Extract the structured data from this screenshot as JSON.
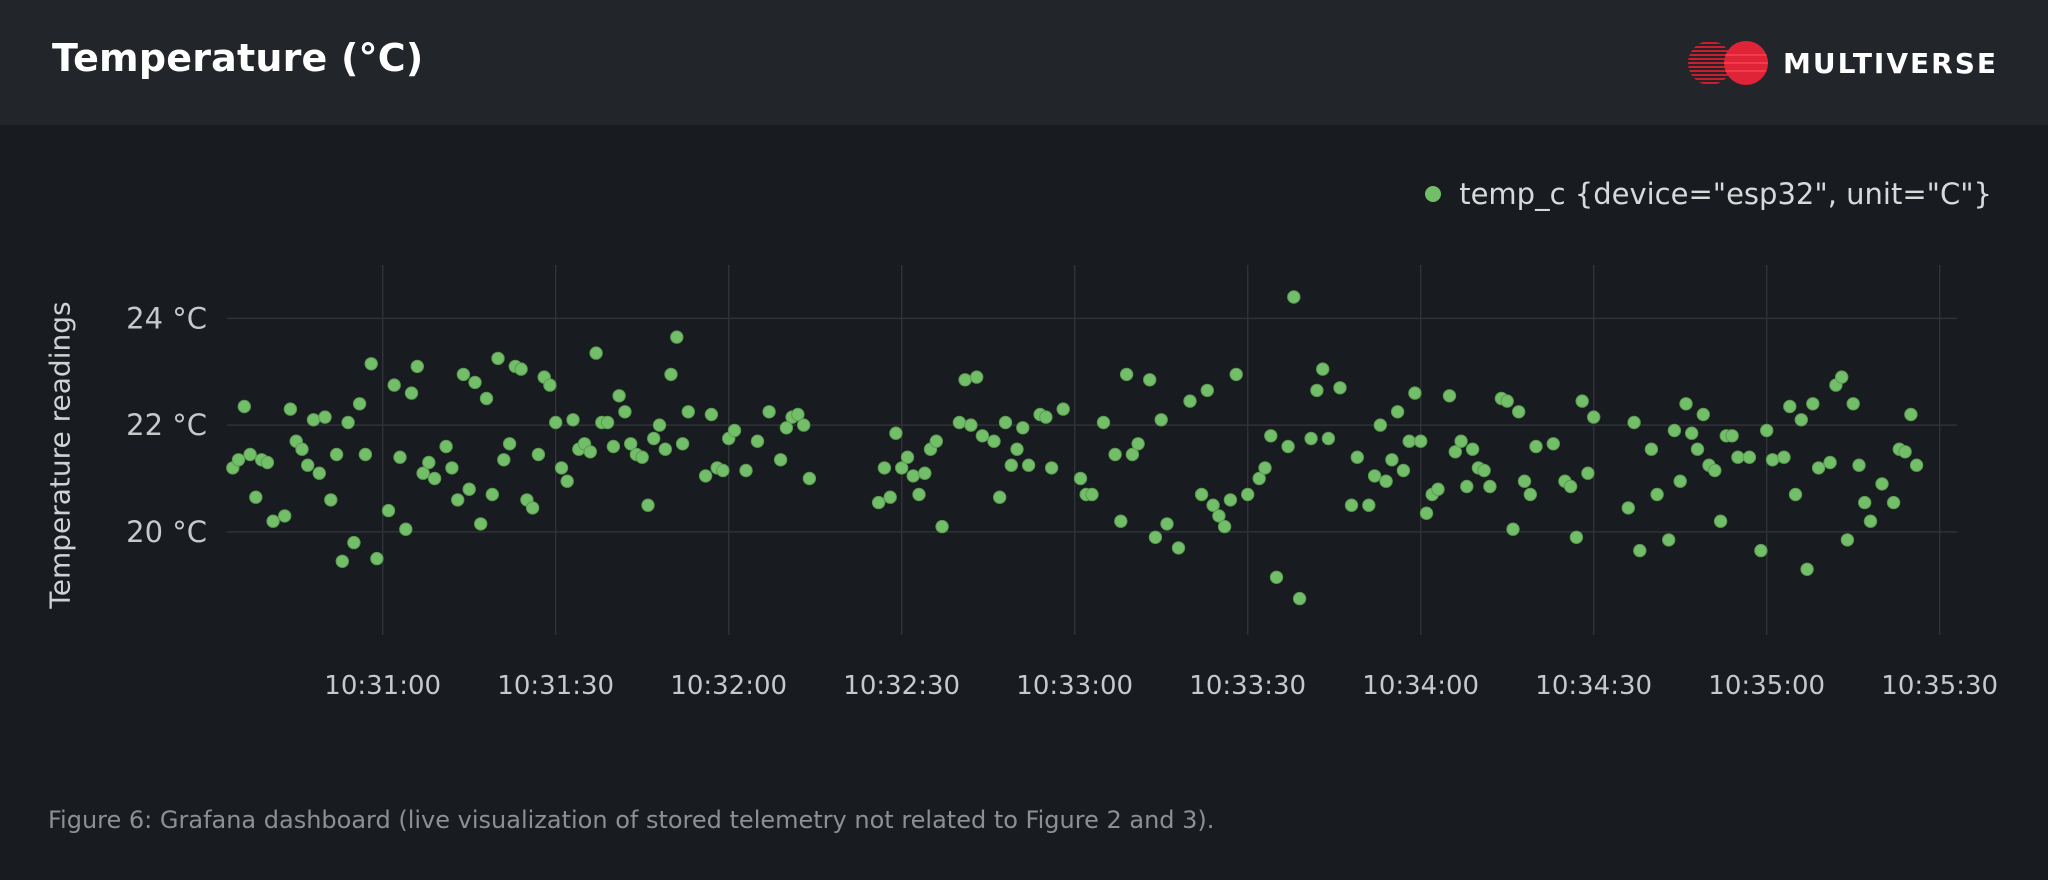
{
  "header": {
    "title": "Temperature (°C)",
    "logo_text": "MULTIVERSE"
  },
  "colors": {
    "background": "#181b1f",
    "header_background": "#22252a",
    "series": "#73bf69",
    "grid": "#2f3237",
    "logo_red": "#e02437"
  },
  "caption": "Figure 6: Grafana dashboard (live visualization of stored telemetry not related to Figure 2 and 3).",
  "chart_data": {
    "type": "scatter",
    "title": "Temperature (°C)",
    "ylabel": "Temperature readings",
    "xlabel": "",
    "x_tick_labels": [
      "10:31:00",
      "10:31:30",
      "10:32:00",
      "10:32:30",
      "10:33:00",
      "10:33:30",
      "10:34:00",
      "10:34:30",
      "10:35:00",
      "10:35:30"
    ],
    "y_tick_labels": [
      "20 °C",
      "22 °C",
      "24 °C"
    ],
    "y_ticks": [
      20,
      22,
      24
    ],
    "xlim": [
      "10:30:33",
      "10:35:33"
    ],
    "ylim": [
      18.2,
      25.0
    ],
    "grid": true,
    "legend_position": "top-right",
    "series": [
      {
        "name": "temp_c {device=\"esp32\", unit=\"C\"}",
        "points": [
          [
            "10:30:34",
            21.2
          ],
          [
            "10:30:35",
            21.35
          ],
          [
            "10:30:36",
            22.35
          ],
          [
            "10:30:37",
            21.45
          ],
          [
            "10:30:38",
            20.65
          ],
          [
            "10:30:39",
            21.35
          ],
          [
            "10:30:40",
            21.3
          ],
          [
            "10:30:41",
            20.2
          ],
          [
            "10:30:43",
            20.3
          ],
          [
            "10:30:44",
            22.3
          ],
          [
            "10:30:45",
            21.7
          ],
          [
            "10:30:46",
            21.55
          ],
          [
            "10:30:47",
            21.25
          ],
          [
            "10:30:48",
            22.1
          ],
          [
            "10:30:49",
            21.1
          ],
          [
            "10:30:50",
            22.15
          ],
          [
            "10:30:51",
            20.6
          ],
          [
            "10:30:52",
            21.45
          ],
          [
            "10:30:53",
            19.45
          ],
          [
            "10:30:54",
            22.05
          ],
          [
            "10:30:55",
            19.8
          ],
          [
            "10:30:56",
            22.4
          ],
          [
            "10:30:57",
            21.45
          ],
          [
            "10:30:58",
            23.15
          ],
          [
            "10:30:59",
            19.5
          ],
          [
            "10:31:01",
            20.4
          ],
          [
            "10:31:02",
            22.75
          ],
          [
            "10:31:03",
            21.4
          ],
          [
            "10:31:04",
            20.05
          ],
          [
            "10:31:05",
            22.6
          ],
          [
            "10:31:06",
            23.1
          ],
          [
            "10:31:07",
            21.1
          ],
          [
            "10:31:08",
            21.3
          ],
          [
            "10:31:09",
            21.0
          ],
          [
            "10:31:11",
            21.6
          ],
          [
            "10:31:12",
            21.2
          ],
          [
            "10:31:13",
            20.6
          ],
          [
            "10:31:14",
            22.95
          ],
          [
            "10:31:15",
            20.8
          ],
          [
            "10:31:16",
            22.8
          ],
          [
            "10:31:17",
            20.15
          ],
          [
            "10:31:18",
            22.5
          ],
          [
            "10:31:19",
            20.7
          ],
          [
            "10:31:20",
            23.25
          ],
          [
            "10:31:21",
            21.35
          ],
          [
            "10:31:22",
            21.65
          ],
          [
            "10:31:23",
            23.1
          ],
          [
            "10:31:24",
            23.05
          ],
          [
            "10:31:25",
            20.6
          ],
          [
            "10:31:26",
            20.45
          ],
          [
            "10:31:27",
            21.45
          ],
          [
            "10:31:28",
            22.9
          ],
          [
            "10:31:29",
            22.75
          ],
          [
            "10:31:30",
            22.05
          ],
          [
            "10:31:31",
            21.2
          ],
          [
            "10:31:32",
            20.95
          ],
          [
            "10:31:33",
            22.1
          ],
          [
            "10:31:34",
            21.55
          ],
          [
            "10:31:35",
            21.65
          ],
          [
            "10:31:36",
            21.5
          ],
          [
            "10:31:37",
            23.35
          ],
          [
            "10:31:38",
            22.05
          ],
          [
            "10:31:39",
            22.05
          ],
          [
            "10:31:40",
            21.6
          ],
          [
            "10:31:41",
            22.55
          ],
          [
            "10:31:42",
            22.25
          ],
          [
            "10:31:43",
            21.65
          ],
          [
            "10:31:44",
            21.45
          ],
          [
            "10:31:45",
            21.4
          ],
          [
            "10:31:46",
            20.5
          ],
          [
            "10:31:47",
            21.75
          ],
          [
            "10:31:48",
            22.0
          ],
          [
            "10:31:49",
            21.55
          ],
          [
            "10:31:50",
            22.95
          ],
          [
            "10:31:51",
            23.65
          ],
          [
            "10:31:52",
            21.65
          ],
          [
            "10:31:53",
            22.25
          ],
          [
            "10:31:56",
            21.05
          ],
          [
            "10:31:57",
            22.2
          ],
          [
            "10:31:58",
            21.2
          ],
          [
            "10:31:59",
            21.15
          ],
          [
            "10:32:00",
            21.75
          ],
          [
            "10:32:01",
            21.9
          ],
          [
            "10:32:03",
            21.15
          ],
          [
            "10:32:05",
            21.7
          ],
          [
            "10:32:07",
            22.25
          ],
          [
            "10:32:09",
            21.35
          ],
          [
            "10:32:10",
            21.95
          ],
          [
            "10:32:11",
            22.15
          ],
          [
            "10:32:12",
            22.2
          ],
          [
            "10:32:13",
            22.0
          ],
          [
            "10:32:14",
            21.0
          ],
          [
            "10:32:26",
            20.55
          ],
          [
            "10:32:27",
            21.2
          ],
          [
            "10:32:28",
            20.65
          ],
          [
            "10:32:29",
            21.85
          ],
          [
            "10:32:30",
            21.2
          ],
          [
            "10:32:31",
            21.4
          ],
          [
            "10:32:32",
            21.05
          ],
          [
            "10:32:33",
            20.7
          ],
          [
            "10:32:34",
            21.1
          ],
          [
            "10:32:35",
            21.55
          ],
          [
            "10:32:36",
            21.7
          ],
          [
            "10:32:37",
            20.1
          ],
          [
            "10:32:40",
            22.05
          ],
          [
            "10:32:41",
            22.85
          ],
          [
            "10:32:42",
            22.0
          ],
          [
            "10:32:43",
            22.9
          ],
          [
            "10:32:44",
            21.8
          ],
          [
            "10:32:46",
            21.7
          ],
          [
            "10:32:47",
            20.65
          ],
          [
            "10:32:48",
            22.05
          ],
          [
            "10:32:49",
            21.25
          ],
          [
            "10:32:50",
            21.55
          ],
          [
            "10:32:51",
            21.95
          ],
          [
            "10:32:52",
            21.25
          ],
          [
            "10:32:54",
            22.2
          ],
          [
            "10:32:55",
            22.15
          ],
          [
            "10:32:56",
            21.2
          ],
          [
            "10:32:58",
            22.3
          ],
          [
            "10:33:01",
            21.0
          ],
          [
            "10:33:02",
            20.7
          ],
          [
            "10:33:03",
            20.7
          ],
          [
            "10:33:05",
            22.05
          ],
          [
            "10:33:07",
            21.45
          ],
          [
            "10:33:08",
            20.2
          ],
          [
            "10:33:09",
            22.95
          ],
          [
            "10:33:10",
            21.45
          ],
          [
            "10:33:11",
            21.65
          ],
          [
            "10:33:13",
            22.85
          ],
          [
            "10:33:14",
            19.9
          ],
          [
            "10:33:15",
            22.1
          ],
          [
            "10:33:16",
            20.15
          ],
          [
            "10:33:18",
            19.7
          ],
          [
            "10:33:20",
            22.45
          ],
          [
            "10:33:22",
            20.7
          ],
          [
            "10:33:23",
            22.65
          ],
          [
            "10:33:24",
            20.5
          ],
          [
            "10:33:25",
            20.3
          ],
          [
            "10:33:26",
            20.1
          ],
          [
            "10:33:27",
            20.6
          ],
          [
            "10:33:28",
            22.95
          ],
          [
            "10:33:30",
            20.7
          ],
          [
            "10:33:32",
            21.0
          ],
          [
            "10:33:33",
            21.2
          ],
          [
            "10:33:34",
            21.8
          ],
          [
            "10:33:35",
            19.15
          ],
          [
            "10:33:37",
            21.6
          ],
          [
            "10:33:38",
            24.4
          ],
          [
            "10:33:39",
            18.75
          ],
          [
            "10:33:41",
            21.75
          ],
          [
            "10:33:42",
            22.65
          ],
          [
            "10:33:43",
            23.05
          ],
          [
            "10:33:44",
            21.75
          ],
          [
            "10:33:46",
            22.7
          ],
          [
            "10:33:48",
            20.5
          ],
          [
            "10:33:49",
            21.4
          ],
          [
            "10:33:51",
            20.5
          ],
          [
            "10:33:52",
            21.05
          ],
          [
            "10:33:53",
            22.0
          ],
          [
            "10:33:54",
            20.95
          ],
          [
            "10:33:55",
            21.35
          ],
          [
            "10:33:56",
            22.25
          ],
          [
            "10:33:57",
            21.15
          ],
          [
            "10:33:58",
            21.7
          ],
          [
            "10:33:59",
            22.6
          ],
          [
            "10:34:00",
            21.7
          ],
          [
            "10:34:01",
            20.35
          ],
          [
            "10:34:02",
            20.7
          ],
          [
            "10:34:03",
            20.8
          ],
          [
            "10:34:05",
            22.55
          ],
          [
            "10:34:06",
            21.5
          ],
          [
            "10:34:07",
            21.7
          ],
          [
            "10:34:08",
            20.85
          ],
          [
            "10:34:09",
            21.55
          ],
          [
            "10:34:10",
            21.2
          ],
          [
            "10:34:11",
            21.15
          ],
          [
            "10:34:12",
            20.85
          ],
          [
            "10:34:14",
            22.5
          ],
          [
            "10:34:15",
            22.45
          ],
          [
            "10:34:16",
            20.05
          ],
          [
            "10:34:17",
            22.25
          ],
          [
            "10:34:18",
            20.95
          ],
          [
            "10:34:19",
            20.7
          ],
          [
            "10:34:20",
            21.6
          ],
          [
            "10:34:23",
            21.65
          ],
          [
            "10:34:25",
            20.95
          ],
          [
            "10:34:26",
            20.85
          ],
          [
            "10:34:27",
            19.9
          ],
          [
            "10:34:28",
            22.45
          ],
          [
            "10:34:29",
            21.1
          ],
          [
            "10:34:30",
            22.15
          ],
          [
            "10:34:36",
            20.45
          ],
          [
            "10:34:37",
            22.05
          ],
          [
            "10:34:38",
            19.65
          ],
          [
            "10:34:40",
            21.55
          ],
          [
            "10:34:41",
            20.7
          ],
          [
            "10:34:43",
            19.85
          ],
          [
            "10:34:44",
            21.9
          ],
          [
            "10:34:45",
            20.95
          ],
          [
            "10:34:46",
            22.4
          ],
          [
            "10:34:47",
            21.85
          ],
          [
            "10:34:48",
            21.55
          ],
          [
            "10:34:49",
            22.2
          ],
          [
            "10:34:50",
            21.25
          ],
          [
            "10:34:51",
            21.15
          ],
          [
            "10:34:52",
            20.2
          ],
          [
            "10:34:53",
            21.8
          ],
          [
            "10:34:54",
            21.8
          ],
          [
            "10:34:55",
            21.4
          ],
          [
            "10:34:57",
            21.4
          ],
          [
            "10:34:59",
            19.65
          ],
          [
            "10:35:00",
            21.9
          ],
          [
            "10:35:01",
            21.35
          ],
          [
            "10:35:03",
            21.4
          ],
          [
            "10:35:04",
            22.35
          ],
          [
            "10:35:05",
            20.7
          ],
          [
            "10:35:06",
            22.1
          ],
          [
            "10:35:07",
            19.3
          ],
          [
            "10:35:08",
            22.4
          ],
          [
            "10:35:09",
            21.2
          ],
          [
            "10:35:11",
            21.3
          ],
          [
            "10:35:12",
            22.75
          ],
          [
            "10:35:13",
            22.9
          ],
          [
            "10:35:14",
            19.85
          ],
          [
            "10:35:15",
            22.4
          ],
          [
            "10:35:16",
            21.25
          ],
          [
            "10:35:17",
            20.55
          ],
          [
            "10:35:18",
            20.2
          ],
          [
            "10:35:20",
            20.9
          ],
          [
            "10:35:22",
            20.55
          ],
          [
            "10:35:23",
            21.55
          ],
          [
            "10:35:24",
            21.5
          ],
          [
            "10:35:25",
            22.2
          ],
          [
            "10:35:26",
            21.25
          ]
        ]
      }
    ]
  }
}
